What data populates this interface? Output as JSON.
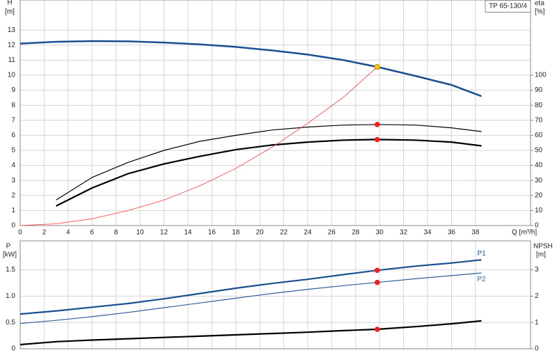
{
  "chart_data": [
    {
      "type": "line",
      "title": "TP 65-130/4",
      "y_label": "H",
      "y_unit": "[m]",
      "y2_label": "eta",
      "y2_unit": "[%]",
      "x_label": "Q [m³/h]",
      "xlim": [
        0,
        42.6
      ],
      "xticks": [
        0,
        2,
        4,
        6,
        8,
        10,
        12,
        14,
        16,
        18,
        20,
        22,
        24,
        26,
        28,
        30,
        32,
        34,
        36,
        38
      ],
      "ylim": [
        0,
        15
      ],
      "yticks": [
        0,
        1,
        2,
        3,
        4,
        5,
        6,
        7,
        8,
        9,
        10,
        11,
        12,
        13
      ],
      "y2lim": [
        0,
        150
      ],
      "y2ticks": [
        0,
        10,
        20,
        30,
        40,
        50,
        60,
        70,
        80,
        90,
        100
      ],
      "grid": true,
      "series": [
        {
          "color": "#1a4f8f",
          "linewidth": 2.5,
          "x": [
            0,
            3,
            6,
            9,
            12,
            15,
            18,
            21,
            24,
            27,
            29.8,
            33,
            36,
            38.5
          ],
          "values": [
            12.1,
            12.22,
            12.27,
            12.25,
            12.17,
            12.05,
            11.88,
            11.65,
            11.37,
            11.0,
            10.55,
            9.95,
            9.35,
            8.6
          ]
        },
        {
          "color": "#000000",
          "linewidth": 1.2,
          "axis": "y2",
          "x": [
            3,
            6,
            9,
            12,
            15,
            18,
            21,
            24,
            27,
            29.8,
            33,
            36,
            38.5
          ],
          "values": [
            17,
            32,
            42,
            50,
            56,
            60,
            63.5,
            65.5,
            66.8,
            67.2,
            66.8,
            65,
            62.5
          ]
        },
        {
          "color": "#000000",
          "linewidth": 2.2,
          "axis": "y2",
          "x": [
            3,
            6,
            9,
            12,
            15,
            18,
            21,
            24,
            27,
            29.8,
            33,
            36,
            38.5
          ],
          "values": [
            13,
            25,
            34.5,
            41,
            46,
            50.5,
            53.5,
            55.5,
            56.8,
            57.2,
            56.8,
            55.5,
            53
          ]
        },
        {
          "color": "#ff5050",
          "linewidth": 0.9,
          "x": [
            0,
            3,
            6,
            9,
            12,
            15,
            18,
            21,
            24,
            27,
            29.8
          ],
          "values": [
            0,
            0.12,
            0.45,
            1.0,
            1.7,
            2.65,
            3.8,
            5.2,
            6.8,
            8.55,
            10.55
          ]
        }
      ],
      "points": [
        {
          "x": 29.8,
          "y": 10.55,
          "color": "#f5c518"
        },
        {
          "x": 29.8,
          "y": 67.2,
          "color": "#ee2222",
          "axis": "y2"
        },
        {
          "x": 29.8,
          "y": 57.2,
          "color": "#ee2222",
          "axis": "y2"
        }
      ]
    },
    {
      "type": "line",
      "y_label": "P",
      "y_unit": "[kW]",
      "y2_label": "NPSH",
      "y2_unit": "[m]",
      "xlim": [
        0,
        42.6
      ],
      "ylim": [
        0,
        2.05
      ],
      "yticks": [
        0,
        0.5,
        {
          "value": 1,
          "label": "1.0"
        },
        1.5
      ],
      "y2lim": [
        0,
        4.1
      ],
      "y2ticks": [
        0,
        1,
        2,
        3
      ],
      "grid": true,
      "series": [
        {
          "name": "P1",
          "color": "#1a4f8f",
          "linewidth": 2.2,
          "x": [
            0,
            3,
            6,
            9,
            12,
            15,
            18,
            21,
            24,
            27,
            29.8,
            33,
            36,
            38.5
          ],
          "values": [
            0.66,
            0.72,
            0.79,
            0.86,
            0.95,
            1.05,
            1.15,
            1.24,
            1.32,
            1.41,
            1.49,
            1.57,
            1.63,
            1.69
          ]
        },
        {
          "name": "P2",
          "color": "#2a5e9a",
          "linewidth": 1.2,
          "x": [
            0,
            3,
            6,
            9,
            12,
            15,
            18,
            21,
            24,
            27,
            29.8,
            33,
            36,
            38.5
          ],
          "values": [
            0.48,
            0.54,
            0.61,
            0.69,
            0.78,
            0.87,
            0.96,
            1.05,
            1.13,
            1.2,
            1.26,
            1.33,
            1.39,
            1.44
          ]
        },
        {
          "color": "#000000",
          "linewidth": 2.2,
          "axis": "y2",
          "x": [
            0,
            3,
            6,
            9,
            12,
            15,
            18,
            21,
            24,
            27,
            29.8,
            33,
            36,
            38.5
          ],
          "values": [
            0.16,
            0.27,
            0.33,
            0.38,
            0.43,
            0.48,
            0.53,
            0.58,
            0.63,
            0.69,
            0.74,
            0.84,
            0.95,
            1.06
          ]
        }
      ],
      "points": [
        {
          "x": 29.8,
          "y": 1.49,
          "color": "#ee2222"
        },
        {
          "x": 29.8,
          "y": 1.26,
          "color": "#ee2222"
        },
        {
          "x": 29.8,
          "y": 0.74,
          "color": "#ee2222",
          "axis": "y2"
        }
      ]
    }
  ]
}
